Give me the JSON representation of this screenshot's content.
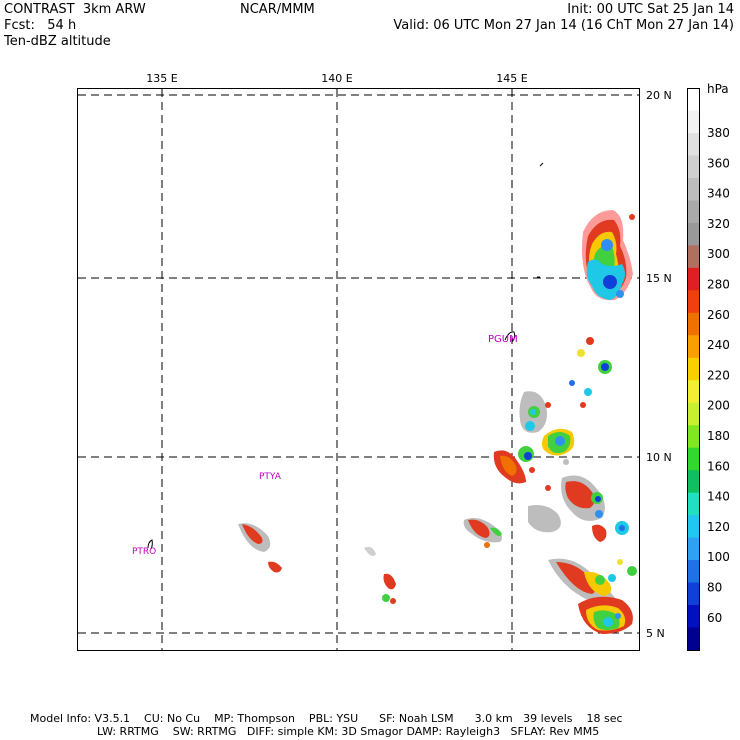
{
  "header": {
    "model": "CONTRAST  3km ARW",
    "forecast": "Fcst:   54 h",
    "field": "Ten-dBZ altitude",
    "center": "NCAR/MMM",
    "init": "Init: 00 UTC Sat 25 Jan 14",
    "valid": "Valid: 06 UTC Mon 27 Jan 14 (16 ChT Mon 27 Jan 14)"
  },
  "map": {
    "lon_labels": [
      "135 E",
      "140 E",
      "145 E"
    ],
    "lat_labels": [
      "20 N",
      "15 N",
      "10 N",
      "5 N"
    ],
    "stations": [
      "PGUM",
      "PTYA",
      "PTRO"
    ]
  },
  "colorbar": {
    "unit": "hPa",
    "tick_labels": [
      "380",
      "360",
      "340",
      "320",
      "300",
      "280",
      "260",
      "240",
      "220",
      "200",
      "180",
      "160",
      "140",
      "120",
      "100",
      "80",
      "60"
    ],
    "colors": [
      "#ffffff",
      "#f2f2f2",
      "#e0e0e0",
      "#cfcfcf",
      "#bdbdbd",
      "#aaaaaa",
      "#999999",
      "#b07060",
      "#e02020",
      "#f04010",
      "#f07000",
      "#f8a000",
      "#f8d000",
      "#f0f030",
      "#c8f030",
      "#80e820",
      "#30d830",
      "#10c060",
      "#20e0c0",
      "#20c8f0",
      "#30a0f0",
      "#2070e8",
      "#1040d8",
      "#0010c0",
      "#000090"
    ]
  },
  "footer": {
    "line1": "Model Info: V3.5.1    CU: No Cu    MP: Thompson    PBL: YSU      SF: Noah LSM      3.0 km   39 levels    18 sec",
    "line2": "LW: RRTMG    SW: RRTMG   DIFF: simple KM: 3D Smagor DAMP: Rayleigh3   SFLAY: Rev MM5"
  }
}
